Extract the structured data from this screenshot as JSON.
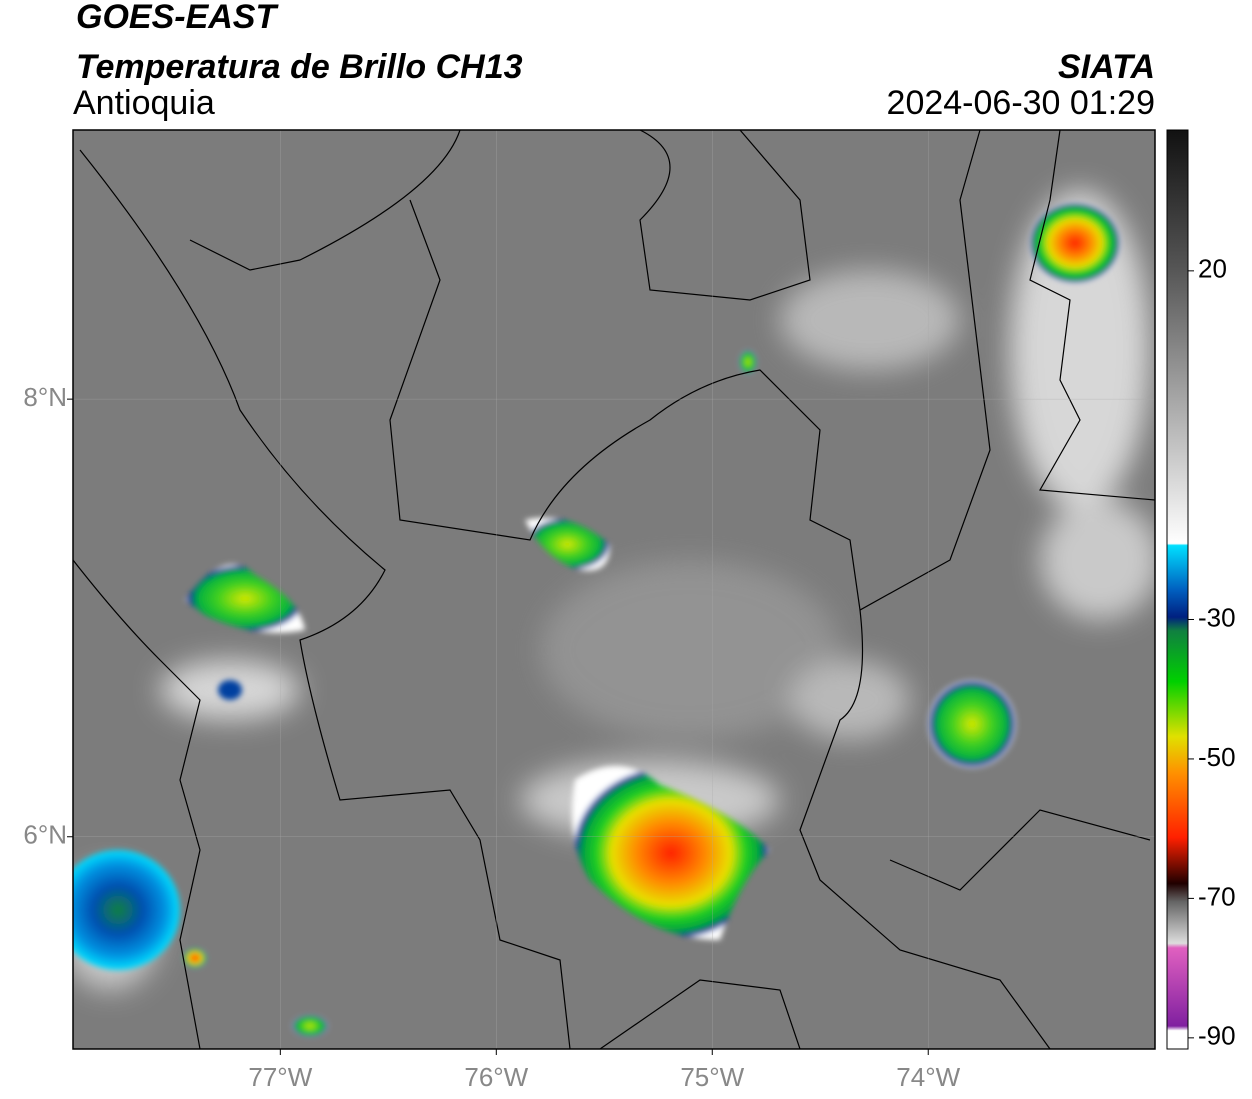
{
  "header": {
    "title": "GOES-EAST",
    "subtitle": "Temperatura de Brillo CH13",
    "region": "Antioquia",
    "source": "SIATA",
    "datetime": "2024-06-30 01:29"
  },
  "map": {
    "lon_range": [
      -77.96,
      -72.95
    ],
    "lat_range": [
      9.23,
      5.03
    ],
    "lon_ticks": [
      {
        "value": -77,
        "label": "77°W"
      },
      {
        "value": -76,
        "label": "76°W"
      },
      {
        "value": -75,
        "label": "75°W"
      },
      {
        "value": -74,
        "label": "74°W"
      }
    ],
    "lat_ticks": [
      {
        "value": 8,
        "label": "8°N"
      },
      {
        "value": 6,
        "label": "6°N"
      }
    ],
    "colorbar": {
      "range": [
        40.2,
        -91.6
      ],
      "ticks": [
        20,
        -30,
        -50,
        -70,
        -90
      ]
    }
  }
}
